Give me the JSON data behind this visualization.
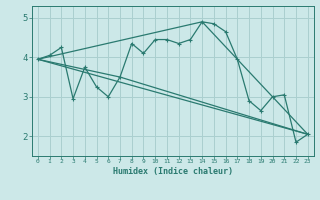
{
  "xlabel": "Humidex (Indice chaleur)",
  "background_color": "#cce8e8",
  "grid_color": "#aacfcf",
  "line_color": "#2a7a70",
  "xlim": [
    -0.5,
    23.5
  ],
  "ylim": [
    1.5,
    5.3
  ],
  "yticks": [
    2,
    3,
    4,
    5
  ],
  "xticks": [
    0,
    1,
    2,
    3,
    4,
    5,
    6,
    7,
    8,
    9,
    10,
    11,
    12,
    13,
    14,
    15,
    16,
    17,
    18,
    19,
    20,
    21,
    22,
    23
  ],
  "line1_x": [
    0,
    1,
    2,
    3,
    4,
    5,
    6,
    7,
    8,
    9,
    10,
    11,
    12,
    13,
    14,
    15,
    16,
    17,
    18,
    19,
    20,
    21,
    22,
    23
  ],
  "line1_y": [
    3.95,
    4.05,
    4.25,
    2.95,
    3.75,
    3.25,
    3.0,
    3.5,
    4.35,
    4.1,
    4.45,
    4.45,
    4.35,
    4.45,
    4.9,
    4.85,
    4.65,
    3.95,
    2.9,
    2.65,
    3.0,
    3.05,
    1.85,
    2.05
  ],
  "line2_x": [
    0,
    23
  ],
  "line2_y": [
    3.95,
    2.05
  ],
  "line3_x": [
    0,
    7,
    23
  ],
  "line3_y": [
    3.95,
    3.5,
    2.05
  ],
  "line4_x": [
    0,
    14,
    23
  ],
  "line4_y": [
    3.95,
    4.9,
    2.05
  ]
}
